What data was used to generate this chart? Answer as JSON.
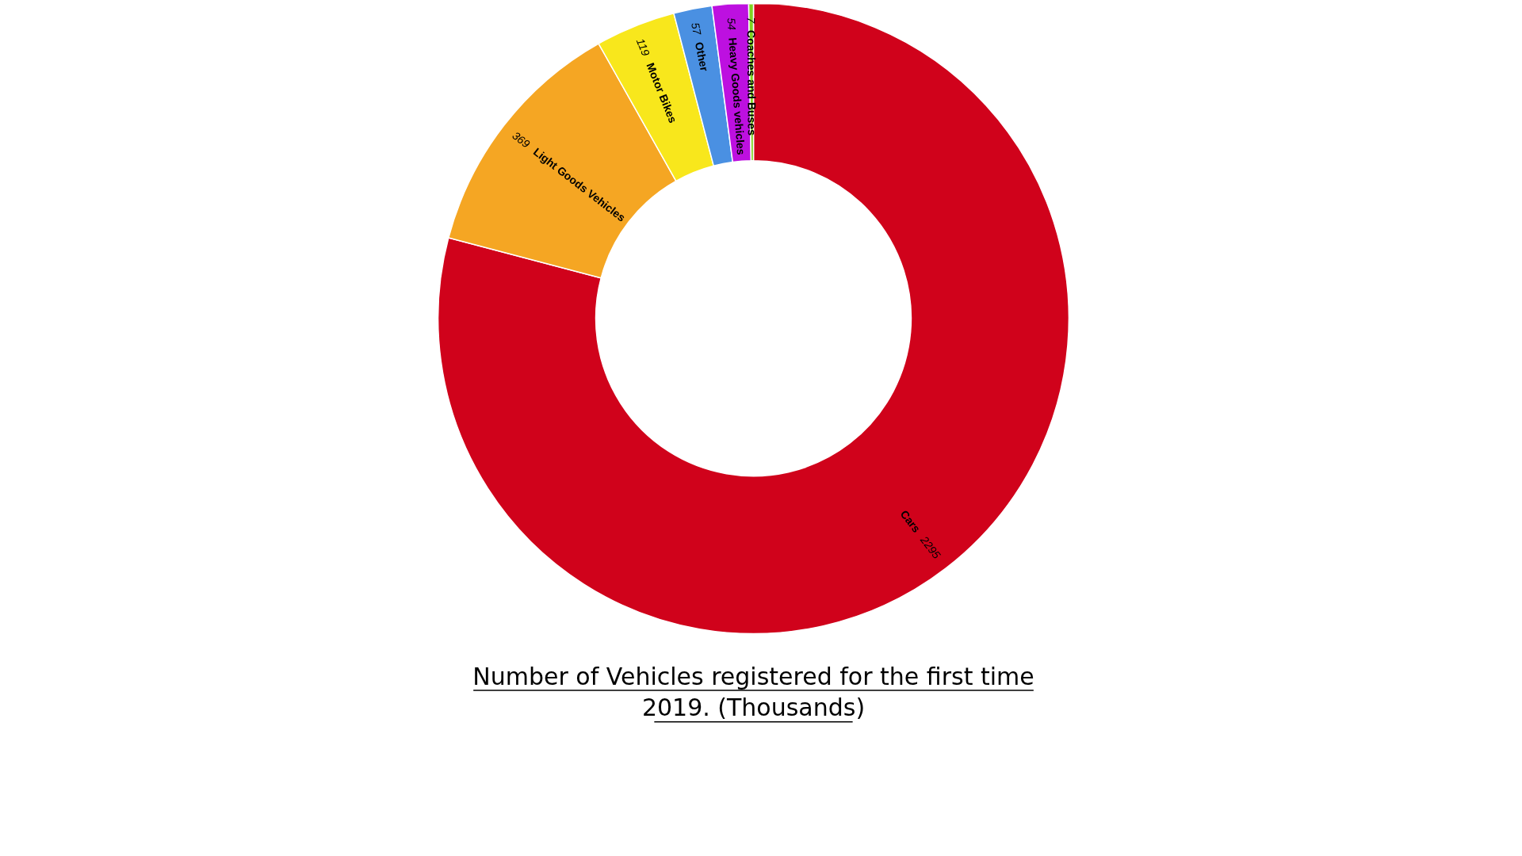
{
  "chart_data": {
    "type": "donut",
    "title": "Number of Vehicles registered for the first time 2019. (Thousands)",
    "categories": [
      "Cars",
      "Light Goods Vehicles",
      "Motor Bikes",
      "Other",
      "Heavy Goods vehicles",
      "Coaches and Buses"
    ],
    "values": [
      2295,
      369,
      119,
      57,
      54,
      7
    ],
    "colors": [
      "#d0021b",
      "#f5a623",
      "#f8e71c",
      "#4a90e2",
      "#bd10e0",
      "#7ed321"
    ],
    "data_labels": true,
    "legend": false
  }
}
